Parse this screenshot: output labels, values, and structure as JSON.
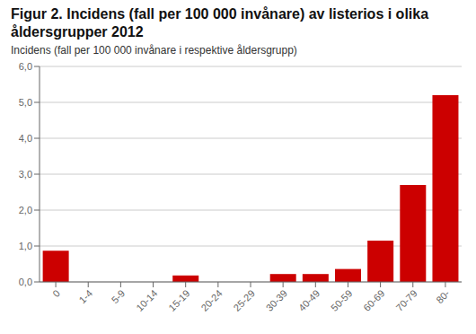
{
  "chart_data": {
    "type": "bar",
    "title": "Figur 2. Incidens (fall per 100 000 invånare) av listerios i olika åldersgrupper 2012",
    "subtitle": "Incidens (fall per 100 000 invånare i respektive åldersgrupp)",
    "categories": [
      "0",
      "1-4",
      "5-9",
      "10-14",
      "15-19",
      "20-24",
      "25-29",
      "30-39",
      "40-49",
      "50-59",
      "60-69",
      "70-79",
      "80-"
    ],
    "values": [
      0.87,
      0.0,
      0.0,
      0.0,
      0.18,
      0.0,
      0.0,
      0.22,
      0.22,
      0.36,
      1.15,
      2.7,
      5.2
    ],
    "color": "#cc0000",
    "ylim": [
      0,
      6.0
    ],
    "yticks": [
      {
        "value": 0.0,
        "label": "0,0"
      },
      {
        "value": 1.0,
        "label": "1,0"
      },
      {
        "value": 2.0,
        "label": "2,0"
      },
      {
        "value": 3.0,
        "label": "3,0"
      },
      {
        "value": 4.0,
        "label": "4,0"
      },
      {
        "value": 5.0,
        "label": "5,0"
      },
      {
        "value": 6.0,
        "label": "6,0"
      }
    ],
    "grid": true
  }
}
